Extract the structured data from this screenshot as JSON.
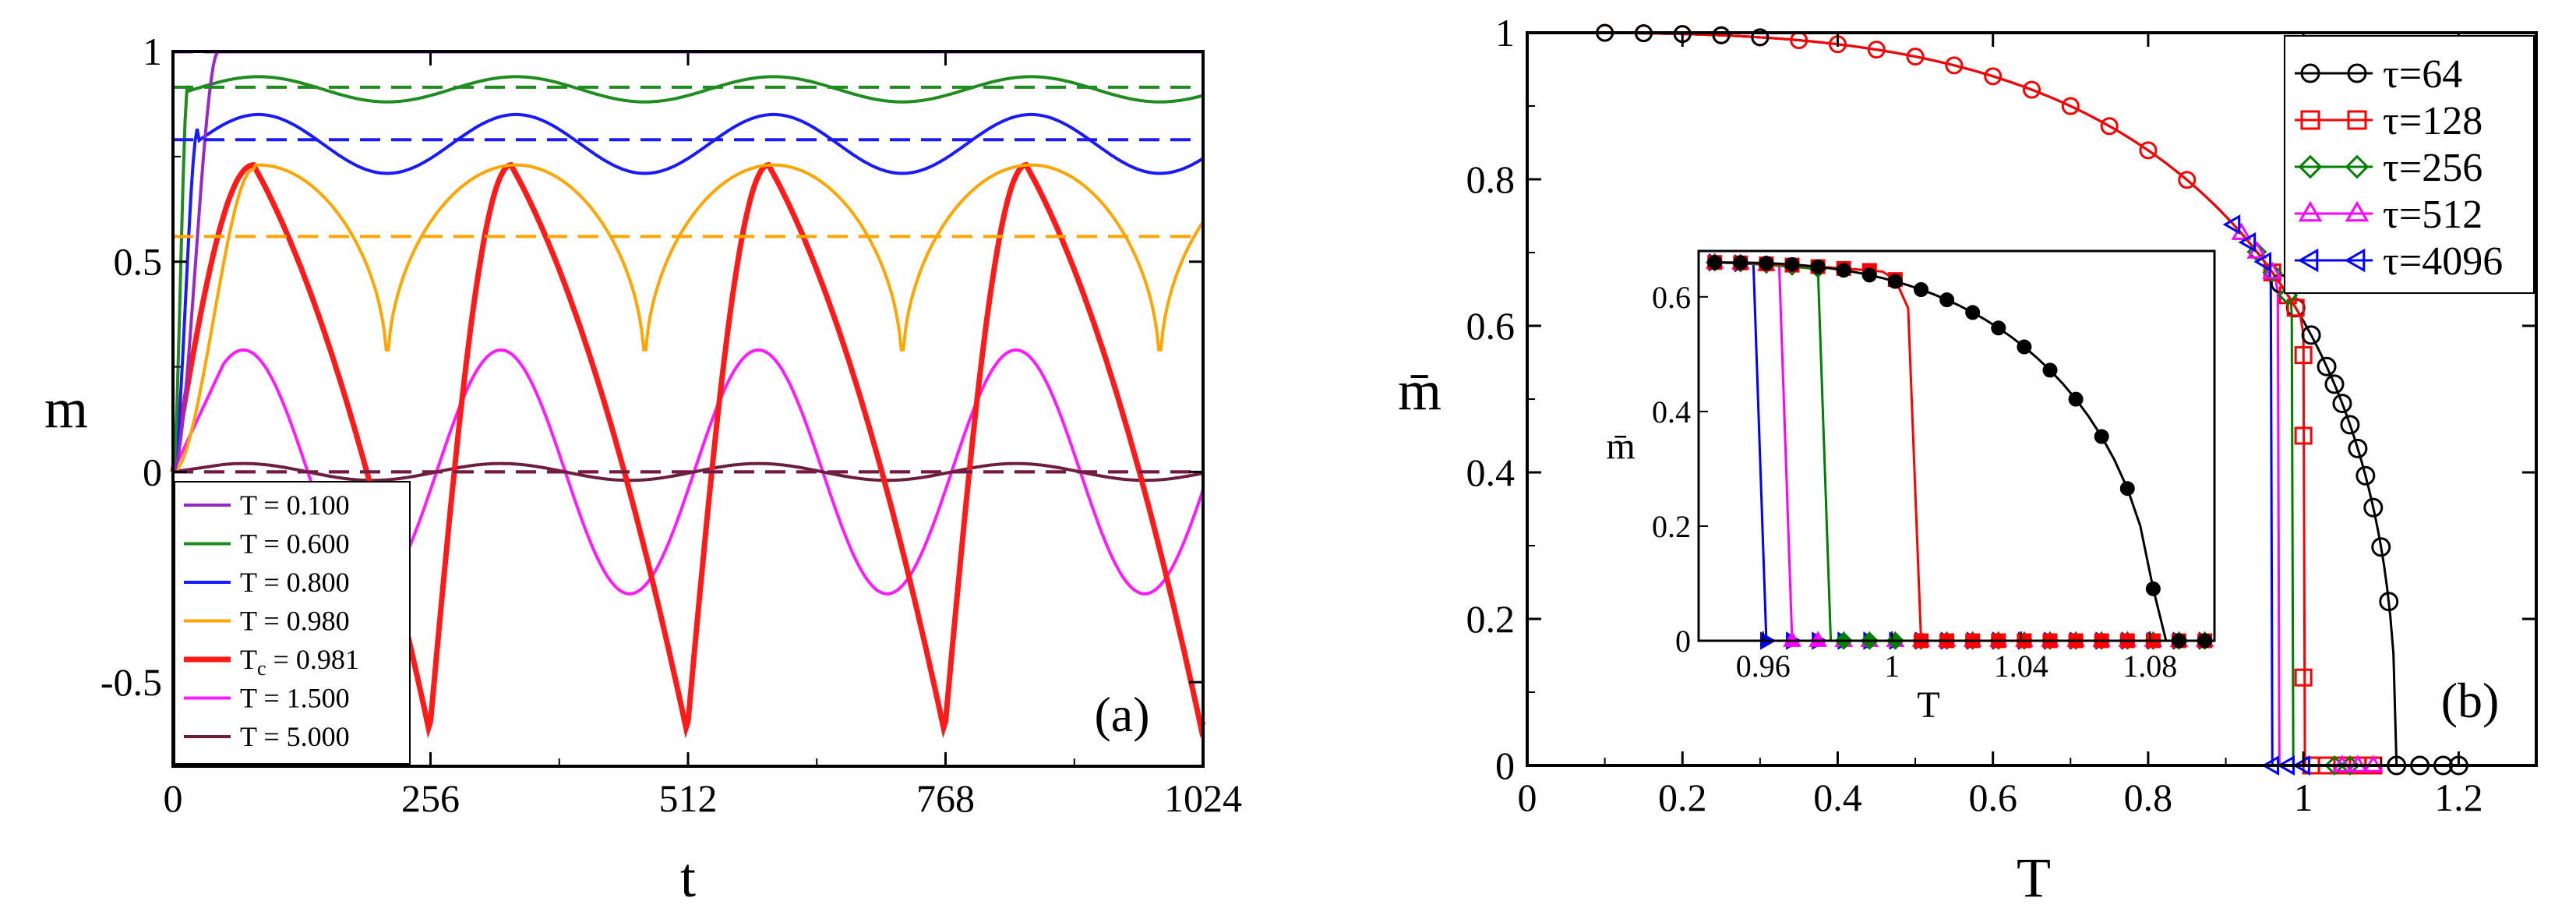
{
  "chart_data": [
    {
      "panel": "a",
      "type": "line",
      "panel_label": "(a)",
      "xlabel": "t",
      "ylabel": "m",
      "xlim": [
        0,
        1024
      ],
      "ylim": [
        -0.7,
        1.0
      ],
      "xticks": [
        0,
        256,
        512,
        768,
        1024
      ],
      "xtick_labels": [
        "0",
        "256",
        "512",
        "768",
        "1024"
      ],
      "yticks": [
        -0.5,
        0,
        0.5,
        1
      ],
      "ytick_labels": [
        "-0.5",
        "0",
        "0.5",
        "1"
      ],
      "grid": false,
      "legend_position": "bottom-left",
      "period": 256,
      "series": [
        {
          "name": "T = 0.100",
          "legend": "T = 0.100",
          "color": "#9a28c8",
          "rise_to": 0.999,
          "rise_time": 45,
          "mean": 0.999,
          "amp": 0.0,
          "peak_t": 85,
          "kind": "sine",
          "dashed_mean": 0.999
        },
        {
          "name": "T = 0.600",
          "legend": "T = 0.600",
          "color": "#1e8c1e",
          "rise_to": 0.93,
          "rise_time": 15,
          "mean": 0.91,
          "amp": 0.03,
          "peak_t": 85,
          "kind": "sine",
          "dashed_mean": 0.915
        },
        {
          "name": "T = 0.800",
          "legend": "T = 0.800",
          "color": "#1a1aff",
          "rise_to": 0.82,
          "rise_time": 25,
          "mean": 0.78,
          "amp": 0.07,
          "peak_t": 85,
          "kind": "sine",
          "dashed_mean": 0.79
        },
        {
          "name": "T = 0.980",
          "legend": "T = 0.980",
          "color": "#ffa500",
          "rise_to": 0.72,
          "rise_time": 80,
          "min": 0.22,
          "max": 0.73,
          "peak_t": 85,
          "kind": "cusp",
          "dashed_mean": 0.56
        },
        {
          "name": "T_c = 0.981",
          "legend_main": "T",
          "legend_sub": "c",
          "legend_rest": " = 0.981",
          "color": "#ff1a1a",
          "min": -0.62,
          "max": 0.73,
          "peak_t": 80,
          "kind": "saw",
          "dashed_mean": 0.0
        },
        {
          "name": "T = 1.500",
          "legend": "T = 1.500",
          "color": "#ff1aff",
          "min": -0.29,
          "max": 0.29,
          "peak_t": 70,
          "kind": "sine",
          "dashed_mean": 0.0
        },
        {
          "name": "T = 5.000",
          "legend": "T = 5.000",
          "color": "#6b1e3e",
          "min": -0.02,
          "max": 0.02,
          "peak_t": 70,
          "kind": "sine",
          "dashed_mean": 0.0
        }
      ]
    },
    {
      "panel": "b",
      "type": "line",
      "panel_label": "(b)",
      "xlabel": "T",
      "ylabel": "m̄",
      "xlim": [
        0,
        1.3
      ],
      "ylim": [
        0,
        1.0
      ],
      "xticks": [
        0,
        0.2,
        0.4,
        0.6,
        0.8,
        1,
        1.2
      ],
      "xtick_labels": [
        "0",
        "0.2",
        "0.4",
        "0.6",
        "0.8",
        "1",
        "1.2"
      ],
      "yticks": [
        0,
        0.2,
        0.4,
        0.6,
        0.8,
        1
      ],
      "ytick_labels": [
        "0",
        "0.2",
        "0.4",
        "0.6",
        "0.8",
        "1"
      ],
      "grid": false,
      "legend_position": "top-right",
      "series": [
        {
          "name": "τ=64",
          "marker": "circle",
          "color": "#000000",
          "Tc": 1.12,
          "x_end": 1.2
        },
        {
          "name": "τ=128",
          "marker": "square",
          "color": "#ff0000",
          "Tc": 1.0,
          "x_end": 1.1
        },
        {
          "name": "τ=256",
          "marker": "diamond",
          "color": "#008000",
          "Tc": 0.985,
          "x_end": 1.1
        },
        {
          "name": "τ=512",
          "marker": "triangle-up",
          "color": "#ff00ff",
          "Tc": 0.965,
          "x_end": 1.1
        },
        {
          "name": "τ=4096",
          "marker": "triangle-left",
          "color": "#0000ff",
          "Tc": 0.96,
          "x_end": 1.1
        }
      ]
    },
    {
      "panel": "b-inset",
      "type": "line",
      "xlabel": "T",
      "ylabel": "m̄",
      "xlim": [
        0.94,
        1.1
      ],
      "ylim": [
        0,
        0.68
      ],
      "xticks": [
        0.96,
        1.0,
        1.04,
        1.08
      ],
      "xtick_labels": [
        "0.96",
        "1",
        "1.04",
        "1.08"
      ],
      "yticks": [
        0,
        0.2,
        0.4,
        0.6
      ],
      "ytick_labels": [
        "0",
        "0.2",
        "0.4",
        "0.6"
      ],
      "grid": false,
      "series": [
        {
          "name": "τ=64",
          "color": "#000000",
          "marker": "circle",
          "Tc": 1.082
        },
        {
          "name": "τ=128",
          "color": "#ff0000",
          "marker": "square",
          "Tc": 1.007
        },
        {
          "name": "τ=256",
          "color": "#008000",
          "marker": "diamond",
          "Tc": 0.978
        },
        {
          "name": "τ=512",
          "color": "#ff00ff",
          "marker": "triangle-up",
          "Tc": 0.969
        },
        {
          "name": "τ=4096",
          "color": "#0000ff",
          "marker": "triangle-right",
          "Tc": 0.9585
        }
      ]
    }
  ]
}
